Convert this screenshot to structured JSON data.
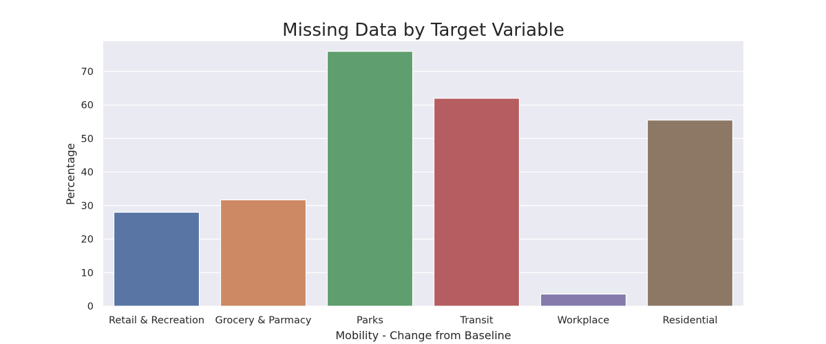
{
  "chart_data": {
    "type": "bar",
    "title": "Missing Data by Target Variable",
    "xlabel": "Mobility - Change from Baseline",
    "ylabel": "Percentage",
    "categories": [
      "Retail & Recreation",
      "Grocery & Parmacy",
      "Parks",
      "Transit",
      "Workplace",
      "Residential"
    ],
    "values": [
      28.0,
      31.7,
      76.0,
      62.0,
      3.6,
      55.5
    ],
    "colors": [
      "#5875a4",
      "#cc8963",
      "#5f9e6e",
      "#b55d60",
      "#857aab",
      "#8d7866"
    ],
    "ylim": [
      0,
      79
    ],
    "yticks": [
      0,
      10,
      20,
      30,
      40,
      50,
      60,
      70
    ],
    "grid": true,
    "background_color": "#eaeaf2"
  }
}
